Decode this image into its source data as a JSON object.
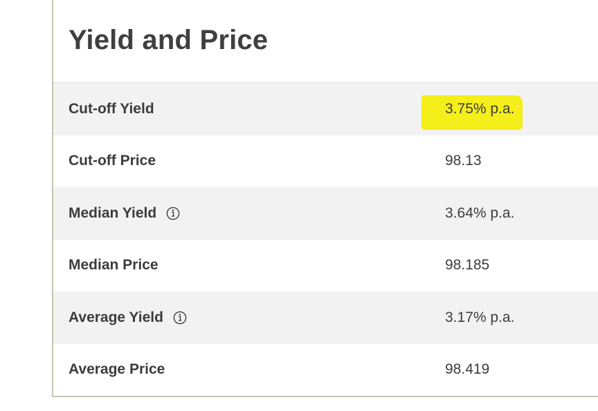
{
  "section": {
    "title": "Yield and Price"
  },
  "rows": [
    {
      "label": "Cut-off Yield",
      "value": "3.75% p.a.",
      "has_info": false,
      "highlighted": true
    },
    {
      "label": "Cut-off Price",
      "value": "98.13",
      "has_info": false,
      "highlighted": false
    },
    {
      "label": "Median Yield",
      "value": "3.64% p.a.",
      "has_info": true,
      "highlighted": false
    },
    {
      "label": "Median Price",
      "value": "98.185",
      "has_info": false,
      "highlighted": false
    },
    {
      "label": "Average Yield",
      "value": "3.17% p.a.",
      "has_info": true,
      "highlighted": false
    },
    {
      "label": "Average Price",
      "value": "98.419",
      "has_info": false,
      "highlighted": false
    }
  ],
  "colors": {
    "highlight": "#f4ee1a",
    "row_alt": "#f2f2f2",
    "border": "#c7c5b3"
  },
  "icons": {
    "info": "info-icon"
  }
}
